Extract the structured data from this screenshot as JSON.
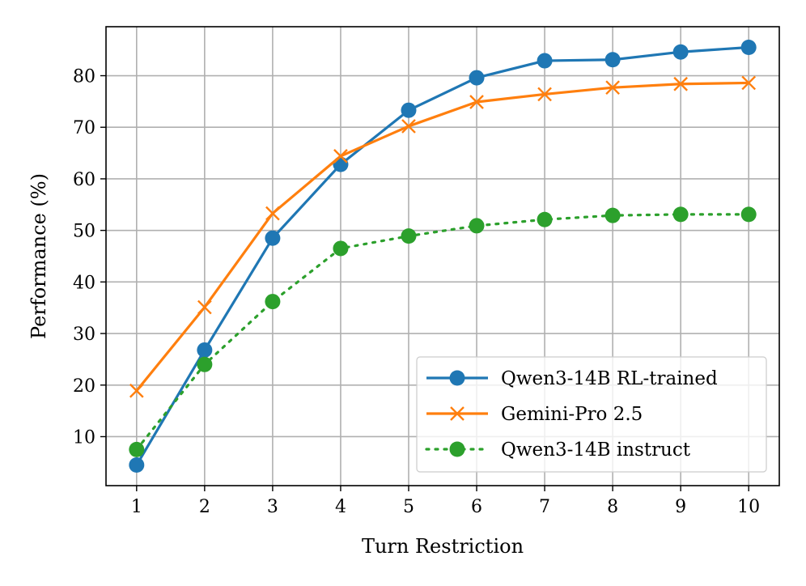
{
  "chart_data": {
    "type": "line",
    "title": "",
    "xlabel": "Turn Restriction",
    "ylabel": "Performance (%)",
    "x": [
      1,
      2,
      3,
      4,
      5,
      6,
      7,
      8,
      9,
      10
    ],
    "xticks": [
      "1",
      "2",
      "3",
      "4",
      "5",
      "6",
      "7",
      "8",
      "9",
      "10"
    ],
    "yticks": [
      "10",
      "20",
      "30",
      "40",
      "50",
      "60",
      "70",
      "80"
    ],
    "xlim": [
      0.55,
      10.45
    ],
    "ylim": [
      0.5,
      89.5
    ],
    "grid": true,
    "legend_position": "lower-right",
    "series": [
      {
        "name": "Qwen3-14B RL-trained",
        "color": "#1f77b4",
        "marker": "circle",
        "linestyle": "solid",
        "values": [
          4.5,
          26.8,
          48.5,
          62.8,
          73.3,
          79.6,
          82.9,
          83.1,
          84.6,
          85.5
        ]
      },
      {
        "name": "Gemini-Pro 2.5",
        "color": "#ff7f0e",
        "marker": "x",
        "linestyle": "solid",
        "values": [
          18.9,
          35.1,
          53.3,
          64.4,
          70.2,
          74.9,
          76.4,
          77.7,
          78.4,
          78.6
        ]
      },
      {
        "name": "Qwen3-14B instruct",
        "color": "#2ca02c",
        "marker": "circle",
        "linestyle": "dotted",
        "values": [
          7.5,
          24.0,
          36.2,
          46.5,
          48.9,
          50.9,
          52.1,
          52.9,
          53.1,
          53.1
        ]
      }
    ]
  }
}
